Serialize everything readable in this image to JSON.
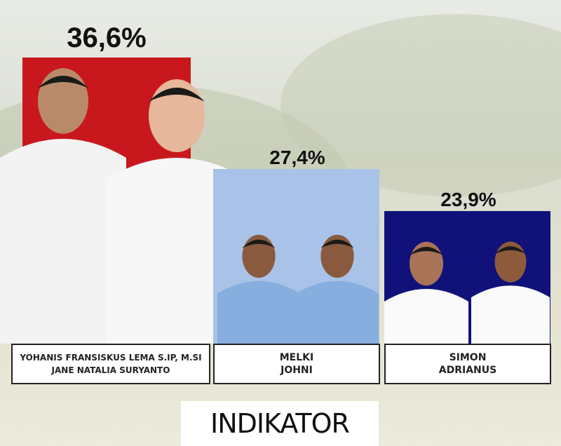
{
  "chart_data": {
    "type": "bar",
    "categories": [
      "YOHANIS FRANSISKUS LEMA S.IP, M.SI / JANE NATALIA SURYANTO",
      "MELKI / JOHNI",
      "SIMON / ADRIANUS"
    ],
    "values": [
      36.6,
      27.4,
      23.9
    ],
    "value_labels": [
      "36,6%",
      "27,4%",
      "23,9%"
    ],
    "colors": [
      "#c8181e",
      "#a9c3e8",
      "#10127a"
    ]
  },
  "candidates": [
    {
      "line1": "YOHANIS FRANSISKUS LEMA S.IP, M.SI",
      "line2": "JANE NATALIA SURYANTO"
    },
    {
      "line1": "MELKI",
      "line2": "JOHNI"
    },
    {
      "line1": "SIMON",
      "line2": "ADRIANUS"
    }
  ],
  "logo": {
    "text": "INDIKATOR"
  }
}
